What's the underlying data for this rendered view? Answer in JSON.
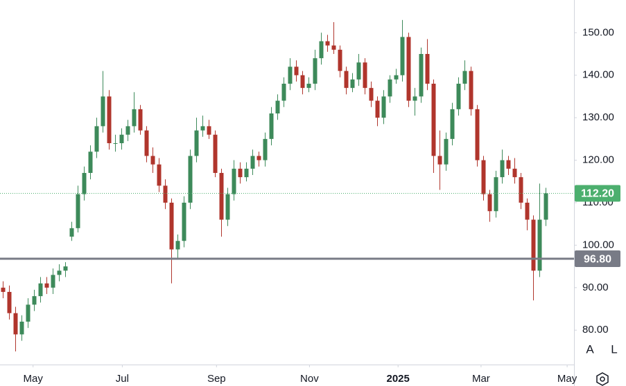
{
  "chart_data": {
    "type": "candlestick",
    "open": [
      90,
      89,
      84,
      79,
      82,
      86,
      88,
      91,
      90,
      93,
      94,
      102,
      104,
      112,
      117,
      122,
      128,
      135,
      124,
      124,
      126,
      128,
      132,
      127,
      121,
      119,
      114,
      110,
      99,
      101,
      110,
      121,
      127,
      128,
      126,
      117,
      106,
      112,
      118,
      116,
      118,
      121,
      120,
      125,
      131,
      134,
      138,
      142,
      140,
      137,
      138,
      144,
      148,
      147,
      146,
      141,
      137,
      139,
      143,
      137,
      134,
      130,
      135,
      139,
      140,
      149,
      134,
      135,
      145,
      138,
      121,
      119,
      125,
      132,
      138,
      141,
      132,
      120,
      112,
      108,
      116,
      120,
      118,
      116,
      110,
      106,
      94,
      106
    ],
    "high": [
      91.5,
      90.5,
      85.5,
      83.5,
      87.5,
      89.5,
      92.5,
      92.5,
      94.5,
      95.5,
      96,
      105.5,
      114,
      118.5,
      123.5,
      130,
      141,
      136.5,
      126,
      127.5,
      129.5,
      136,
      133,
      128,
      123,
      120.5,
      115.5,
      111,
      102.5,
      111.5,
      122.5,
      130,
      130.5,
      129.5,
      127,
      118,
      113.5,
      120,
      119.5,
      119.5,
      122.5,
      122,
      126.5,
      132.5,
      135.5,
      139.5,
      144,
      143.5,
      141,
      139.5,
      146,
      150,
      149.5,
      152.5,
      147,
      142,
      140.5,
      145,
      144,
      138.5,
      135,
      136.5,
      140,
      141.5,
      153,
      150,
      137,
      146.5,
      148.5,
      139,
      127,
      126.5,
      133.5,
      139.5,
      143.5,
      142,
      133,
      121,
      113,
      117.5,
      122.5,
      121,
      120.5,
      117,
      111,
      107,
      114.5,
      113.5
    ],
    "low": [
      87.5,
      82.5,
      75,
      77.5,
      80.5,
      84.5,
      86.5,
      88.5,
      88.5,
      91.5,
      92.5,
      101,
      103,
      110.5,
      115.5,
      120.5,
      126.5,
      122.5,
      122,
      122.5,
      124.5,
      126.5,
      126,
      119.5,
      117,
      112.5,
      108.5,
      91,
      97,
      99.5,
      108.5,
      119.5,
      125.5,
      125,
      116,
      102,
      104.5,
      110.5,
      114.5,
      115,
      116.5,
      118.5,
      118.5,
      123.5,
      129.5,
      132.5,
      136.5,
      138.5,
      135.5,
      136,
      136.5,
      142.5,
      145.5,
      145,
      139.5,
      135.5,
      136,
      137.5,
      135.5,
      132.5,
      128,
      128.5,
      133.5,
      138,
      138.5,
      132.5,
      130.5,
      133.5,
      136.5,
      117,
      113,
      117.5,
      123.5,
      130.5,
      136.5,
      130.5,
      118.5,
      110.5,
      105.5,
      106.5,
      114.5,
      116.5,
      114.5,
      108.5,
      103.5,
      87,
      92.5,
      104.5
    ],
    "close": [
      89,
      84,
      79,
      82,
      86,
      88,
      91,
      90,
      93,
      94,
      95,
      104,
      112,
      117,
      122,
      128,
      135,
      124,
      124,
      126,
      128,
      132,
      127,
      121,
      119,
      114,
      110,
      99,
      101,
      110,
      121,
      127,
      128,
      126,
      117,
      106,
      112,
      118,
      116,
      118,
      121,
      120,
      125,
      131,
      134,
      138,
      142,
      140,
      137,
      138,
      144,
      148,
      147,
      146,
      141,
      137,
      139,
      143,
      137,
      134,
      130,
      135,
      139,
      140,
      149,
      134,
      135,
      145,
      138,
      121,
      119,
      125,
      132,
      138,
      141,
      132,
      120,
      112,
      108,
      116,
      120,
      118,
      116,
      110,
      106,
      94,
      106,
      112.2
    ],
    "up_color": "#3d8a5a",
    "down_color": "#b0352c",
    "ylim": [
      71.9,
      157.7
    ],
    "yticks": [
      {
        "value": 80,
        "label": "80.00"
      },
      {
        "value": 90,
        "label": "90.00"
      },
      {
        "value": 100,
        "label": "100.00"
      },
      {
        "value": 110,
        "label": "110.00"
      },
      {
        "value": 120,
        "label": "120.00"
      },
      {
        "value": 130,
        "label": "130.00"
      },
      {
        "value": 140,
        "label": "140.00"
      },
      {
        "value": 150,
        "label": "150.00"
      }
    ],
    "xticks": [
      {
        "value": 4.8,
        "label": "May"
      },
      {
        "value": 19.1,
        "label": "Jul"
      },
      {
        "value": 34.2,
        "label": "Sep"
      },
      {
        "value": 49.1,
        "label": "Nov"
      },
      {
        "value": 63.3,
        "label": "2025"
      },
      {
        "value": 76.6,
        "label": "Mar"
      },
      {
        "value": 90.4,
        "label": "May"
      }
    ],
    "last_price": {
      "value": 112.2,
      "label": "112.20",
      "color": "#4caf6e"
    },
    "level": {
      "value": 96.8,
      "label": "96.80",
      "color": "#787b86"
    }
  },
  "controls": {
    "auto": "A",
    "log": "L"
  }
}
